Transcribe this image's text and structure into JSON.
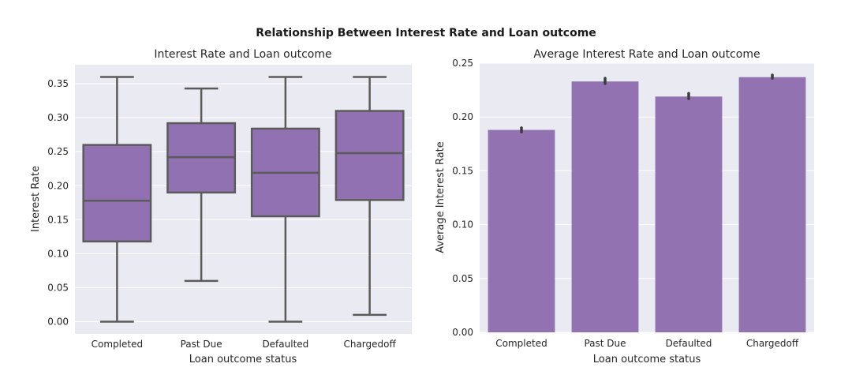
{
  "suptitle": "Relationship Between Interest Rate and Loan outcome",
  "colors": {
    "plot_background": "#eaeaf2",
    "grid": "#ffffff",
    "box_fill": "#9171b2",
    "box_edge": "#5b5b5b",
    "bar_fill": "#9372b2",
    "error_bar": "#3c3c3c"
  },
  "chart_data": [
    {
      "type": "box",
      "title": "Interest Rate and Loan outcome",
      "xlabel": "Loan outcome status",
      "ylabel": "Interest Rate",
      "categories": [
        "Completed",
        "Past Due",
        "Defaulted",
        "Chargedoff"
      ],
      "boxes": [
        {
          "whisker_low": 0.0,
          "q1": 0.118,
          "median": 0.178,
          "q3": 0.26,
          "whisker_high": 0.36
        },
        {
          "whisker_low": 0.06,
          "q1": 0.19,
          "median": 0.242,
          "q3": 0.292,
          "whisker_high": 0.343
        },
        {
          "whisker_low": 0.0,
          "q1": 0.155,
          "median": 0.219,
          "q3": 0.284,
          "whisker_high": 0.36
        },
        {
          "whisker_low": 0.01,
          "q1": 0.179,
          "median": 0.248,
          "q3": 0.31,
          "whisker_high": 0.36
        }
      ],
      "yticks": [
        "0.00",
        "0.05",
        "0.10",
        "0.15",
        "0.20",
        "0.25",
        "0.30",
        "0.35"
      ],
      "ylim": [
        -0.018,
        0.378
      ],
      "grid": true
    },
    {
      "type": "bar",
      "title": "Average Interest Rate and Loan outcome",
      "xlabel": "Loan outcome status",
      "ylabel": "Average Interest Rate",
      "categories": [
        "Completed",
        "Past Due",
        "Defaulted",
        "Chargedoff"
      ],
      "values": [
        0.188,
        0.233,
        0.219,
        0.237
      ],
      "error_low": [
        0.186,
        0.231,
        0.217,
        0.236
      ],
      "error_high": [
        0.19,
        0.236,
        0.222,
        0.239
      ],
      "yticks": [
        "0.00",
        "0.05",
        "0.10",
        "0.15",
        "0.20",
        "0.25"
      ],
      "ylim": [
        0,
        0.25
      ],
      "grid": true
    }
  ]
}
